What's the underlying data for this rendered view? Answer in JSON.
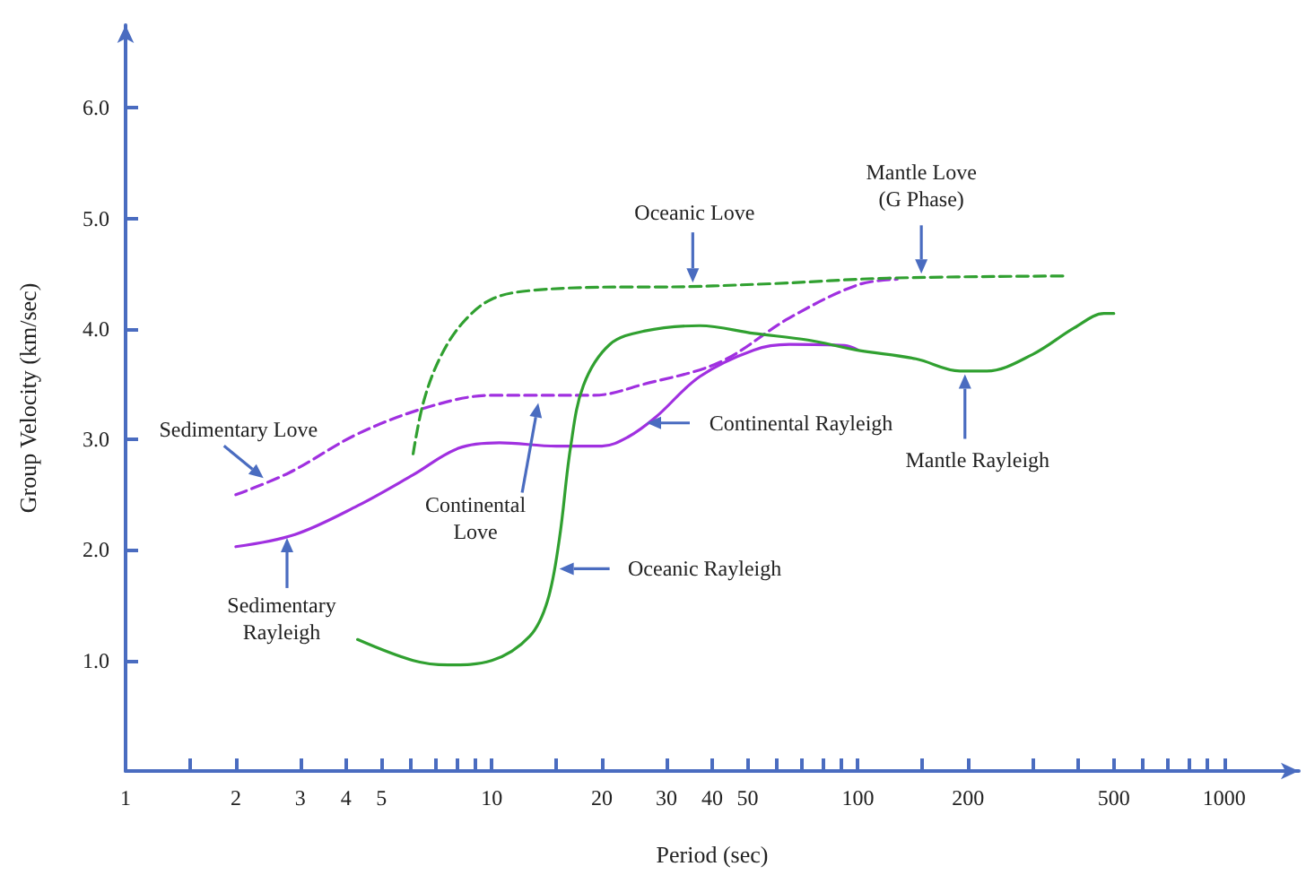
{
  "chart_data": {
    "type": "line",
    "xlabel": "Period (sec)",
    "ylabel": "Group Velocity (km/sec)",
    "log": "x",
    "marker": "none",
    "xlim": [
      1,
      1600
    ],
    "ylim": [
      0,
      6.75
    ],
    "xticks": [
      1,
      {
        "value": 1.5,
        "label": null
      },
      2,
      3,
      4,
      5,
      {
        "value": 6,
        "label": null
      },
      {
        "value": 7,
        "label": null
      },
      {
        "value": 8,
        "label": null
      },
      {
        "value": 9,
        "label": null
      },
      10,
      {
        "value": 15,
        "label": null
      },
      20,
      30,
      40,
      50,
      {
        "value": 60,
        "label": null
      },
      {
        "value": 70,
        "label": null
      },
      {
        "value": 80,
        "label": null
      },
      {
        "value": 90,
        "label": null
      },
      100,
      {
        "value": 150,
        "label": null
      },
      200,
      {
        "value": 300,
        "label": null
      },
      {
        "value": 400,
        "label": null
      },
      500,
      {
        "value": 600,
        "label": null
      },
      {
        "value": 700,
        "label": null
      },
      {
        "value": 800,
        "label": null
      },
      {
        "value": 900,
        "label": null
      },
      1000
    ],
    "yticks": [
      {
        "value": 1,
        "label": "1.0"
      },
      {
        "value": 2,
        "label": "2.0"
      },
      {
        "value": 3,
        "label": "3.0"
      },
      {
        "value": 4,
        "label": "4.0"
      },
      {
        "value": 5,
        "label": "5.0"
      },
      {
        "value": 6,
        "label": "6.0"
      }
    ],
    "series": [
      {
        "color": "#a030e0",
        "line_style": "dashed",
        "x": [
          2,
          2.8,
          4.3,
          6.8,
          10,
          13,
          19,
          26,
          42,
          65,
          100,
          128
        ],
        "values": [
          2.5,
          2.7,
          3.05,
          3.3,
          3.4,
          3.4,
          3.4,
          3.5,
          3.7,
          4.1,
          4.4,
          4.45
        ]
      },
      {
        "color": "#a030e0",
        "line_style": "solid",
        "x": [
          2,
          2.9,
          4.3,
          6.1,
          8.1,
          10.5,
          15,
          20,
          23.5,
          28,
          37,
          52,
          65,
          92,
          100
        ],
        "values": [
          2.03,
          2.14,
          2.4,
          2.68,
          2.92,
          2.97,
          2.94,
          2.94,
          3.02,
          3.2,
          3.57,
          3.81,
          3.86,
          3.85,
          3.81
        ]
      },
      {
        "color": "#30a030",
        "line_style": "solid",
        "x": [
          4.3,
          6.1,
          7.6,
          10,
          12.7,
          14.2,
          15.3,
          16.4,
          17.8,
          21,
          26,
          37,
          52,
          73,
          99,
          144,
          190,
          225,
          300,
          390,
          470,
          500
        ],
        "values": [
          1.19,
          1.0,
          0.96,
          1.0,
          1.22,
          1.54,
          2.1,
          2.92,
          3.49,
          3.86,
          3.98,
          4.03,
          3.96,
          3.9,
          3.81,
          3.73,
          3.62,
          3.62,
          3.77,
          4.01,
          4.14,
          4.14
        ]
      },
      {
        "color": "#30a030",
        "line_style": "dashed",
        "x": [
          6.1,
          6.5,
          7.2,
          8.3,
          10,
          13,
          24,
          28,
          58,
          120,
          370
        ],
        "values": [
          2.87,
          3.33,
          3.73,
          4.05,
          4.27,
          4.35,
          4.38,
          4.38,
          4.41,
          4.46,
          4.48
        ]
      }
    ],
    "annotations": [
      {
        "text": "Sedimentary Love",
        "x": 2.38,
        "y": 2.65
      },
      {
        "text": "Sedimentary\nRayleigh",
        "x": 2.76,
        "y": 2.11
      },
      {
        "text": "Continental\nLove",
        "x": 13.4,
        "y": 3.33
      },
      {
        "text": "Oceanic Rayleigh",
        "x": 15.3,
        "y": 1.83
      },
      {
        "text": "Continental Rayleigh",
        "x": 26.5,
        "y": 3.15
      },
      {
        "text": "Oceanic Love",
        "x": 35.4,
        "y": 4.42
      },
      {
        "text": "Mantle Love\n(G Phase)",
        "x": 149,
        "y": 4.5
      },
      {
        "text": "Mantle Rayleigh",
        "x": 196,
        "y": 3.59
      }
    ]
  }
}
